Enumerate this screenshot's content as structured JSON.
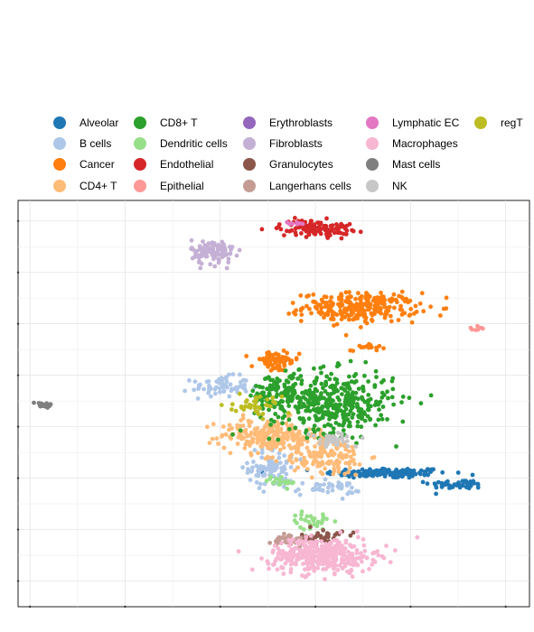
{
  "chart_data": {
    "type": "scatter",
    "title": "",
    "xlabel": "",
    "ylabel": "",
    "xlim": [
      -8.5,
      13
    ],
    "ylim": [
      -17.5,
      22
    ],
    "grid": true,
    "legend_position": "top",
    "legend_columns": 5,
    "series": [
      {
        "name": "Alveolar",
        "color": "#1f77b4",
        "clusters": [
          {
            "x": 7.0,
            "y": -4.5,
            "sx": 1.3,
            "sy": 0.25,
            "n": 140
          },
          {
            "x": 10.0,
            "y": -5.6,
            "sx": 0.6,
            "sy": 0.22,
            "n": 50
          }
        ]
      },
      {
        "name": "B cells",
        "color": "#aec7e8",
        "clusters": [
          {
            "x": 0.0,
            "y": 3.9,
            "sx": 0.6,
            "sy": 0.5,
            "n": 70
          },
          {
            "x": 2.2,
            "y": -4.0,
            "sx": 0.5,
            "sy": 1.0,
            "n": 90
          },
          {
            "x": 4.5,
            "y": -6.0,
            "sx": 0.7,
            "sy": 0.35,
            "n": 40
          }
        ]
      },
      {
        "name": "Cancer",
        "color": "#ff7f0e",
        "clusters": [
          {
            "x": 5.9,
            "y": 11.6,
            "sx": 1.2,
            "sy": 0.7,
            "n": 280
          },
          {
            "x": 2.3,
            "y": 6.3,
            "sx": 0.5,
            "sy": 0.5,
            "n": 70
          },
          {
            "x": 6.2,
            "y": 7.8,
            "sx": 0.35,
            "sy": 0.2,
            "n": 15
          }
        ]
      },
      {
        "name": "CD4+ T",
        "color": "#ffbb78",
        "clusters": [
          {
            "x": 2.0,
            "y": -0.8,
            "sx": 1.0,
            "sy": 0.8,
            "n": 200
          },
          {
            "x": 4.4,
            "y": -2.8,
            "sx": 0.9,
            "sy": 1.0,
            "n": 160
          }
        ]
      },
      {
        "name": "CD8+ T",
        "color": "#2ca02c",
        "clusters": [
          {
            "x": 4.7,
            "y": 2.4,
            "sx": 1.3,
            "sy": 1.5,
            "n": 420
          },
          {
            "x": 2.4,
            "y": 3.3,
            "sx": 0.6,
            "sy": 0.9,
            "n": 90
          }
        ]
      },
      {
        "name": "Dendritic cells",
        "color": "#98df8a",
        "clusters": [
          {
            "x": 2.6,
            "y": -5.3,
            "sx": 0.35,
            "sy": 0.3,
            "n": 20
          },
          {
            "x": 3.8,
            "y": -9.2,
            "sx": 0.4,
            "sy": 0.4,
            "n": 30
          }
        ]
      },
      {
        "name": "Endothelial",
        "color": "#d62728",
        "clusters": [
          {
            "x": 4.0,
            "y": 19.3,
            "sx": 0.75,
            "sy": 0.4,
            "n": 110
          }
        ]
      },
      {
        "name": "Epithelial",
        "color": "#ff9896",
        "clusters": [
          {
            "x": 10.8,
            "y": 9.5,
            "sx": 0.15,
            "sy": 0.1,
            "n": 8
          }
        ]
      },
      {
        "name": "Erythroblasts",
        "color": "#9467bd",
        "clusters": []
      },
      {
        "name": "Fibroblasts",
        "color": "#c5b0d5",
        "clusters": [
          {
            "x": -0.3,
            "y": 17.0,
            "sx": 0.45,
            "sy": 0.6,
            "n": 110
          }
        ]
      },
      {
        "name": "Granulocytes",
        "color": "#8c564b",
        "clusters": [
          {
            "x": 4.3,
            "y": -10.7,
            "sx": 0.45,
            "sy": 0.35,
            "n": 35
          }
        ]
      },
      {
        "name": "Langerhans cells",
        "color": "#c49c94",
        "clusters": [
          {
            "x": 2.9,
            "y": -11.0,
            "sx": 0.35,
            "sy": 0.35,
            "n": 35
          }
        ]
      },
      {
        "name": "Lymphatic EC",
        "color": "#e377c2",
        "clusters": [
          {
            "x": 3.0,
            "y": 19.8,
            "sx": 0.2,
            "sy": 0.1,
            "n": 8
          }
        ]
      },
      {
        "name": "Macrophages",
        "color": "#f7b6d2",
        "clusters": [
          {
            "x": 4.3,
            "y": -12.5,
            "sx": 1.1,
            "sy": 0.8,
            "n": 380
          }
        ]
      },
      {
        "name": "Mast cells",
        "color": "#7f7f7f",
        "clusters": [
          {
            "x": -7.5,
            "y": 2.1,
            "sx": 0.22,
            "sy": 0.15,
            "n": 25
          }
        ]
      },
      {
        "name": "NK",
        "color": "#c7c7c7",
        "clusters": [
          {
            "x": 4.8,
            "y": -1.3,
            "sx": 0.5,
            "sy": 0.35,
            "n": 40
          }
        ]
      },
      {
        "name": "regT",
        "color": "#bcbd22",
        "clusters": [
          {
            "x": 1.6,
            "y": 2.0,
            "sx": 0.5,
            "sy": 0.5,
            "n": 40
          }
        ]
      }
    ]
  }
}
